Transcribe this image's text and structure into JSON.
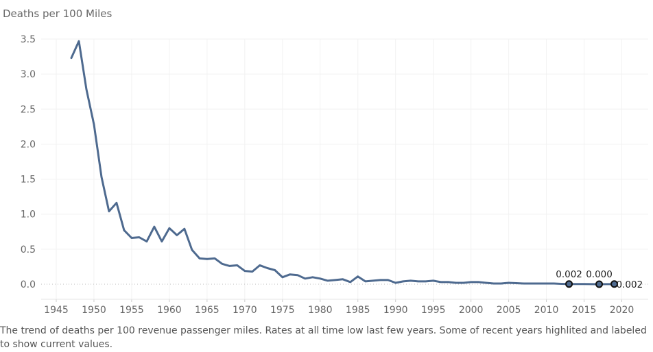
{
  "chart_data": {
    "type": "line",
    "title": "",
    "ylabel": "Deaths per 100 Miles",
    "xlabel": "",
    "xlim": [
      1943,
      2023.5
    ],
    "ylim": [
      0,
      3.5
    ],
    "x_ticks": [
      1945,
      1950,
      1955,
      1960,
      1965,
      1970,
      1975,
      1980,
      1985,
      1990,
      1995,
      2000,
      2005,
      2010,
      2015,
      2020
    ],
    "y_ticks": [
      "0.0",
      "0.5",
      "1.0",
      "1.5",
      "2.0",
      "2.5",
      "3.0",
      "3.5"
    ],
    "grid": true,
    "line_color": "#4e6a8f",
    "series": [
      {
        "x": [
          1947,
          1948,
          1949,
          1950,
          1951,
          1952,
          1953,
          1954,
          1955,
          1956,
          1957,
          1958,
          1959,
          1960,
          1961,
          1962,
          1963,
          1964,
          1965,
          1966,
          1967,
          1968,
          1969,
          1970,
          1971,
          1972,
          1973,
          1974,
          1975,
          1976,
          1977,
          1978,
          1979,
          1980,
          1981,
          1982,
          1983,
          1984,
          1985,
          1986,
          1987,
          1988,
          1989,
          1990,
          1991,
          1992,
          1993,
          1994,
          1995,
          1996,
          1997,
          1998,
          1999,
          2000,
          2001,
          2002,
          2003,
          2004,
          2005,
          2006,
          2007,
          2008,
          2009,
          2010,
          2011,
          2012,
          2013,
          2014,
          2015,
          2016,
          2017,
          2018,
          2019
        ],
        "y": [
          3.23,
          3.47,
          2.78,
          2.28,
          1.53,
          1.04,
          1.16,
          0.77,
          0.66,
          0.67,
          0.61,
          0.82,
          0.61,
          0.8,
          0.7,
          0.79,
          0.49,
          0.37,
          0.36,
          0.37,
          0.29,
          0.26,
          0.27,
          0.19,
          0.18,
          0.27,
          0.23,
          0.2,
          0.1,
          0.14,
          0.13,
          0.08,
          0.1,
          0.08,
          0.05,
          0.06,
          0.07,
          0.03,
          0.11,
          0.04,
          0.05,
          0.06,
          0.06,
          0.02,
          0.04,
          0.05,
          0.04,
          0.04,
          0.05,
          0.03,
          0.03,
          0.02,
          0.02,
          0.03,
          0.03,
          0.02,
          0.01,
          0.01,
          0.02,
          0.015,
          0.01,
          0.01,
          0.01,
          0.01,
          0.01,
          0.005,
          0.002,
          0.003,
          0.002,
          0.001,
          0.0,
          0.001,
          0.002
        ]
      }
    ],
    "highlights": [
      {
        "x": 2013,
        "y": 0.002,
        "label": "0.002"
      },
      {
        "x": 2017,
        "y": 0.0,
        "label": "0.000"
      },
      {
        "x": 2019,
        "y": 0.002,
        "label": "0.002"
      }
    ]
  },
  "caption": "The trend of deaths per 100 revenue passenger miles. Rates at all time low last few years. Some of recent years highlited and labeled to show current values."
}
